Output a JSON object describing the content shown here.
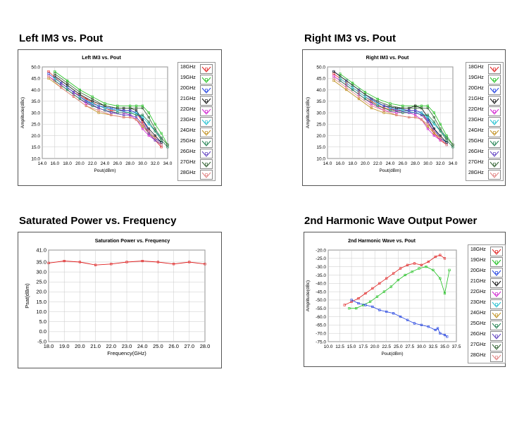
{
  "titles": {
    "left_im3": "Left IM3 vs. Pout",
    "right_im3": "Right IM3 vs. Pout",
    "sat_power": "Saturated Power vs. Frequency",
    "harmonic": "2nd Harmonic Wave Output Power"
  },
  "colors": [
    "#e02020",
    "#20c020",
    "#2040e0",
    "#101010",
    "#d020d0",
    "#20c0d0",
    "#c09020",
    "#208050",
    "#6040c0",
    "#306030",
    "#e08080"
  ],
  "legend_labels": [
    "18GHz",
    "19GHz",
    "20GHz",
    "21GHz",
    "22GHz",
    "23GHz",
    "24GHz",
    "25GHz",
    "26GHz",
    "27GHz",
    "28GHz"
  ],
  "chart_data": [
    {
      "id": "left_im3",
      "type": "line",
      "title": "Left IM3 vs. Pout",
      "xlabel": "Pout(dBm)",
      "ylabel": "Amplitude(dBc)",
      "xlim": [
        14.0,
        34.0
      ],
      "ylim": [
        10.0,
        50.0
      ],
      "xticks": [
        "14.0",
        "16.0",
        "18.0",
        "20.0",
        "22.0",
        "24.0",
        "26.0",
        "28.0",
        "30.0",
        "32.0",
        "34.0"
      ],
      "yticks": [
        "10.0",
        "15.0",
        "20.0",
        "25.0",
        "30.0",
        "35.0",
        "40.0",
        "45.0",
        "50.0"
      ],
      "series": [
        {
          "name": "18GHz",
          "x": [
            15,
            17,
            19,
            21,
            23,
            25,
            27,
            28,
            29,
            30,
            31,
            32,
            33
          ],
          "y": [
            48,
            43,
            39,
            36,
            33,
            31,
            31,
            31,
            30,
            26,
            21,
            18,
            15
          ]
        },
        {
          "name": "19GHz",
          "x": [
            16,
            18,
            20,
            22,
            24,
            26,
            28,
            29,
            30,
            31,
            32,
            33,
            34
          ],
          "y": [
            48,
            44,
            40,
            37,
            34,
            33,
            33,
            33,
            33,
            30,
            25,
            21,
            16
          ]
        },
        {
          "name": "20GHz",
          "x": [
            15,
            17,
            19,
            21,
            23,
            25,
            27,
            28,
            29,
            30,
            31,
            32,
            33
          ],
          "y": [
            47,
            43,
            39,
            35,
            33,
            32,
            31,
            31,
            30,
            27,
            22,
            19,
            17
          ]
        },
        {
          "name": "21GHz",
          "x": [
            16,
            18,
            20,
            22,
            24,
            26,
            27,
            28,
            29,
            30,
            31,
            32,
            33
          ],
          "y": [
            46,
            42,
            38,
            35,
            33,
            32,
            32,
            32,
            31,
            27,
            23,
            20,
            17
          ]
        },
        {
          "name": "22GHz",
          "x": [
            15,
            17,
            19,
            21,
            23,
            25,
            27,
            28,
            29,
            30,
            31,
            32
          ],
          "y": [
            46,
            42,
            38,
            34,
            32,
            30,
            30,
            29,
            27,
            23,
            20,
            18
          ]
        },
        {
          "name": "23GHz",
          "x": [
            16,
            18,
            20,
            22,
            24,
            26,
            28,
            29,
            30,
            31,
            32,
            33
          ],
          "y": [
            45,
            41,
            37,
            34,
            32,
            31,
            30,
            30,
            28,
            25,
            22,
            19
          ]
        },
        {
          "name": "24GHz",
          "x": [
            15,
            17,
            19,
            21,
            23,
            25,
            27,
            28,
            29,
            30,
            31,
            32
          ],
          "y": [
            45,
            41,
            37,
            33,
            30,
            29,
            28,
            28,
            27,
            24,
            21,
            19
          ]
        },
        {
          "name": "25GHz",
          "x": [
            16,
            18,
            20,
            22,
            24,
            26,
            28,
            29,
            30,
            31,
            32,
            33,
            34
          ],
          "y": [
            44,
            40,
            36,
            33,
            31,
            30,
            30,
            29,
            29,
            26,
            22,
            18,
            15
          ]
        },
        {
          "name": "26GHz",
          "x": [
            17,
            19,
            21,
            23,
            25,
            27,
            28,
            29,
            30,
            31,
            32,
            33
          ],
          "y": [
            43,
            39,
            35,
            32,
            30,
            29,
            29,
            28,
            25,
            21,
            18,
            16
          ]
        },
        {
          "name": "27GHz",
          "x": [
            16,
            18,
            20,
            22,
            24,
            26,
            28,
            29,
            30,
            31,
            32,
            33,
            34
          ],
          "y": [
            47,
            43,
            39,
            36,
            33,
            32,
            32,
            32,
            32,
            28,
            23,
            19,
            16
          ]
        },
        {
          "name": "28GHz",
          "x": [
            15,
            17,
            19,
            21,
            23,
            25,
            27,
            28,
            29,
            30,
            31,
            32,
            33
          ],
          "y": [
            46,
            41,
            37,
            33,
            31,
            29,
            28,
            28,
            27,
            25,
            22,
            19,
            16
          ]
        }
      ]
    },
    {
      "id": "right_im3",
      "type": "line",
      "title": "Right IM3 vs. Pout",
      "xlabel": "Pout(dBm)",
      "ylabel": "Amplitude(dBc)",
      "xlim": [
        14.0,
        34.0
      ],
      "ylim": [
        10.0,
        50.0
      ],
      "xticks": [
        "14.0",
        "16.0",
        "18.0",
        "20.0",
        "22.0",
        "24.0",
        "26.0",
        "28.0",
        "30.0",
        "32.0",
        "34.0"
      ],
      "yticks": [
        "10.0",
        "15.0",
        "20.0",
        "25.0",
        "30.0",
        "35.0",
        "40.0",
        "45.0",
        "50.0"
      ],
      "series": [
        {
          "name": "18GHz",
          "x": [
            15,
            17,
            19,
            21,
            23,
            25,
            27,
            28,
            29,
            30,
            31,
            32,
            33
          ],
          "y": [
            47,
            43,
            39,
            35,
            32,
            31,
            31,
            31,
            30,
            26,
            21,
            18,
            16
          ]
        },
        {
          "name": "19GHz",
          "x": [
            16,
            18,
            20,
            22,
            24,
            26,
            28,
            29,
            30,
            31,
            32,
            33,
            34
          ],
          "y": [
            47,
            43,
            39,
            36,
            34,
            33,
            33,
            33,
            33,
            30,
            25,
            20,
            16
          ]
        },
        {
          "name": "20GHz",
          "x": [
            15,
            17,
            19,
            21,
            23,
            25,
            27,
            28,
            29,
            30,
            31,
            32,
            33
          ],
          "y": [
            48,
            44,
            40,
            36,
            33,
            32,
            31,
            31,
            30,
            27,
            23,
            19,
            17
          ]
        },
        {
          "name": "21GHz",
          "x": [
            15,
            17,
            19,
            21,
            23,
            25,
            27,
            28,
            29,
            30,
            31,
            32,
            33
          ],
          "y": [
            48,
            44,
            40,
            36,
            33,
            32,
            32,
            33,
            32,
            28,
            23,
            20,
            17
          ]
        },
        {
          "name": "22GHz",
          "x": [
            15,
            17,
            19,
            21,
            23,
            25,
            27,
            28,
            29,
            30,
            31,
            32
          ],
          "y": [
            46,
            42,
            38,
            34,
            31,
            30,
            30,
            29,
            27,
            23,
            20,
            18
          ]
        },
        {
          "name": "23GHz",
          "x": [
            16,
            18,
            20,
            22,
            24,
            26,
            28,
            29,
            30,
            31,
            32,
            33
          ],
          "y": [
            45,
            41,
            37,
            34,
            32,
            31,
            30,
            30,
            28,
            25,
            22,
            19
          ]
        },
        {
          "name": "24GHz",
          "x": [
            15,
            17,
            19,
            21,
            23,
            25,
            27,
            28,
            29,
            30,
            31,
            32
          ],
          "y": [
            44,
            40,
            36,
            32,
            30,
            29,
            28,
            28,
            27,
            24,
            21,
            19
          ]
        },
        {
          "name": "25GHz",
          "x": [
            16,
            18,
            20,
            22,
            24,
            26,
            28,
            29,
            30,
            31,
            32,
            33,
            34
          ],
          "y": [
            44,
            40,
            36,
            33,
            31,
            30,
            30,
            29,
            29,
            26,
            22,
            18,
            15
          ]
        },
        {
          "name": "26GHz",
          "x": [
            17,
            19,
            21,
            23,
            25,
            27,
            28,
            29,
            30,
            31,
            32,
            33
          ],
          "y": [
            44,
            40,
            36,
            33,
            31,
            30,
            30,
            29,
            26,
            22,
            19,
            16
          ]
        },
        {
          "name": "27GHz",
          "x": [
            16,
            18,
            20,
            22,
            24,
            26,
            28,
            29,
            30,
            31,
            32,
            33,
            34
          ],
          "y": [
            46,
            42,
            38,
            35,
            33,
            32,
            32,
            32,
            32,
            28,
            23,
            19,
            16
          ]
        },
        {
          "name": "28GHz",
          "x": [
            15,
            17,
            19,
            21,
            23,
            25,
            27,
            28,
            29,
            30,
            31,
            32,
            33
          ],
          "y": [
            45,
            41,
            37,
            33,
            31,
            29,
            28,
            28,
            27,
            25,
            22,
            19,
            16
          ]
        }
      ]
    },
    {
      "id": "sat_power",
      "type": "line",
      "title": "Saturation Power vs. Frequency",
      "xlabel": "Frequency(GHz)",
      "ylabel": "Psat(dBm)",
      "xlim": [
        18.0,
        28.0
      ],
      "ylim": [
        -5.0,
        41.0
      ],
      "xticks": [
        "18.0",
        "19.0",
        "20.0",
        "21.0",
        "22.0",
        "23.0",
        "24.0",
        "25.0",
        "26.0",
        "27.0",
        "28.0"
      ],
      "yticks": [
        "-5.0",
        "0.0",
        "5.0",
        "10.0",
        "15.0",
        "20.0",
        "25.0",
        "30.0",
        "35.0",
        "41.0"
      ],
      "series": [
        {
          "name": "Psat",
          "x": [
            18,
            19,
            20,
            21,
            22,
            23,
            24,
            25,
            26,
            27,
            28
          ],
          "y": [
            34.5,
            35.5,
            35.0,
            33.5,
            34.0,
            35.0,
            35.5,
            35.0,
            34.0,
            35.0,
            34.0
          ]
        }
      ]
    },
    {
      "id": "harmonic",
      "type": "line",
      "title": "2nd Harmonic Wave vs. Pout",
      "xlabel": "Pout(dBm)",
      "ylabel": "Amplitude(dBc)",
      "xlim": [
        10.0,
        37.5
      ],
      "ylim": [
        -75.0,
        -20.0
      ],
      "xticks": [
        "10.0",
        "12.5",
        "15.0",
        "17.5",
        "20.0",
        "22.5",
        "25.0",
        "27.5",
        "30.0",
        "32.5",
        "35.0",
        "37.5"
      ],
      "yticks": [
        "-20.0",
        "-25.0",
        "-30.0",
        "-35.0",
        "-40.0",
        "-45.0",
        "-50.0",
        "-55.0",
        "-60.0",
        "-65.0",
        "-70.0",
        "-75.0"
      ],
      "series": [
        {
          "name": "18GHz",
          "x": [
            13.5,
            15,
            16.5,
            18,
            19.5,
            21,
            22.5,
            24,
            25.5,
            27,
            28.5,
            30,
            31.5,
            33,
            34,
            35
          ],
          "y": [
            -53,
            -51,
            -49,
            -46,
            -43,
            -40,
            -37,
            -34,
            -31,
            -29,
            -28,
            -29,
            -27,
            -24,
            -23,
            -25
          ]
        },
        {
          "name": "19GHz",
          "x": [
            14.5,
            16,
            17.5,
            19,
            20.5,
            22,
            23.5,
            25,
            26.5,
            28,
            29.5,
            31,
            32.5,
            34,
            35,
            36
          ],
          "y": [
            -55,
            -55,
            -53,
            -51,
            -48,
            -45,
            -42,
            -38,
            -35,
            -33,
            -31,
            -30,
            -32,
            -37,
            -46,
            -32
          ]
        },
        {
          "name": "20GHz",
          "x": [
            15,
            16.5,
            18,
            19.5,
            21,
            22.5,
            24,
            25.5,
            27,
            28.5,
            30,
            31.5,
            33,
            33.5,
            34,
            35,
            35.5
          ],
          "y": [
            -50,
            -52,
            -53,
            -54,
            -56,
            -57,
            -58,
            -60,
            -62,
            -64,
            -65,
            -66,
            -68,
            -67,
            -70,
            -71,
            -72
          ]
        }
      ]
    }
  ]
}
